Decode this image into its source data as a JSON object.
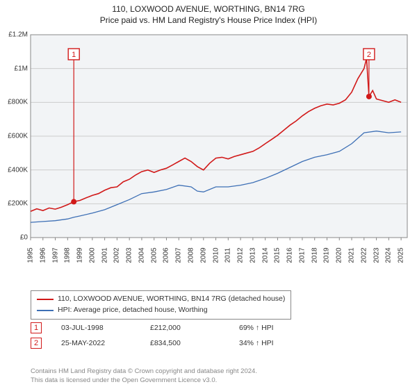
{
  "title": "110, LOXWOOD AVENUE, WORTHING, BN14 7RG",
  "subtitle": "Price paid vs. HM Land Registry's House Price Index (HPI)",
  "chart": {
    "type": "line",
    "xlim": [
      1995,
      2025.5
    ],
    "ylim": [
      0,
      1200000
    ],
    "ytick_step": 200000,
    "yticks": [
      0,
      200000,
      400000,
      600000,
      800000,
      1000000,
      1200000
    ],
    "ytick_labels": [
      "£0",
      "£200K",
      "£400K",
      "£600K",
      "£800K",
      "£1M",
      "£1.2M"
    ],
    "xticks": [
      1995,
      1996,
      1997,
      1998,
      1999,
      2000,
      2001,
      2002,
      2003,
      2004,
      2005,
      2006,
      2007,
      2008,
      2009,
      2010,
      2011,
      2012,
      2013,
      2014,
      2015,
      2016,
      2017,
      2018,
      2019,
      2020,
      2021,
      2022,
      2023,
      2024,
      2025
    ],
    "background_color": "#f2f4f6",
    "grid_color": "#cccccc",
    "series": [
      {
        "name": "110, LOXWOOD AVENUE, WORTHING, BN14 7RG (detached house)",
        "color": "#d11919",
        "line_width": 1.6,
        "data": [
          [
            1995.0,
            155000
          ],
          [
            1995.5,
            170000
          ],
          [
            1996.0,
            160000
          ],
          [
            1996.5,
            175000
          ],
          [
            1997.0,
            168000
          ],
          [
            1997.5,
            180000
          ],
          [
            1998.0,
            195000
          ],
          [
            1998.5,
            212000
          ],
          [
            1999.0,
            220000
          ],
          [
            1999.5,
            235000
          ],
          [
            2000.0,
            250000
          ],
          [
            2000.5,
            260000
          ],
          [
            2001.0,
            280000
          ],
          [
            2001.5,
            295000
          ],
          [
            2002.0,
            300000
          ],
          [
            2002.5,
            330000
          ],
          [
            2003.0,
            345000
          ],
          [
            2003.5,
            370000
          ],
          [
            2004.0,
            390000
          ],
          [
            2004.5,
            400000
          ],
          [
            2005.0,
            385000
          ],
          [
            2005.5,
            400000
          ],
          [
            2006.0,
            410000
          ],
          [
            2006.5,
            430000
          ],
          [
            2007.0,
            450000
          ],
          [
            2007.5,
            470000
          ],
          [
            2008.0,
            450000
          ],
          [
            2008.5,
            420000
          ],
          [
            2009.0,
            400000
          ],
          [
            2009.5,
            440000
          ],
          [
            2010.0,
            470000
          ],
          [
            2010.5,
            475000
          ],
          [
            2011.0,
            465000
          ],
          [
            2011.5,
            480000
          ],
          [
            2012.0,
            490000
          ],
          [
            2012.5,
            500000
          ],
          [
            2013.0,
            510000
          ],
          [
            2013.5,
            530000
          ],
          [
            2014.0,
            555000
          ],
          [
            2014.5,
            580000
          ],
          [
            2015.0,
            605000
          ],
          [
            2015.5,
            635000
          ],
          [
            2016.0,
            665000
          ],
          [
            2016.5,
            690000
          ],
          [
            2017.0,
            720000
          ],
          [
            2017.5,
            745000
          ],
          [
            2018.0,
            765000
          ],
          [
            2018.5,
            780000
          ],
          [
            2019.0,
            790000
          ],
          [
            2019.5,
            785000
          ],
          [
            2020.0,
            795000
          ],
          [
            2020.5,
            815000
          ],
          [
            2021.0,
            860000
          ],
          [
            2021.5,
            940000
          ],
          [
            2022.0,
            1000000
          ],
          [
            2022.2,
            1060000
          ],
          [
            2022.4,
            834500
          ],
          [
            2022.7,
            870000
          ],
          [
            2023.0,
            820000
          ],
          [
            2023.5,
            810000
          ],
          [
            2024.0,
            800000
          ],
          [
            2024.5,
            815000
          ],
          [
            2025.0,
            800000
          ]
        ]
      },
      {
        "name": "HPI: Average price, detached house, Worthing",
        "color": "#3d6fb5",
        "line_width": 1.3,
        "data": [
          [
            1995.0,
            90000
          ],
          [
            1996.0,
            95000
          ],
          [
            1997.0,
            100000
          ],
          [
            1998.0,
            110000
          ],
          [
            1998.5,
            120000
          ],
          [
            1999.0,
            128000
          ],
          [
            2000.0,
            145000
          ],
          [
            2001.0,
            165000
          ],
          [
            2002.0,
            195000
          ],
          [
            2003.0,
            225000
          ],
          [
            2004.0,
            260000
          ],
          [
            2005.0,
            270000
          ],
          [
            2006.0,
            285000
          ],
          [
            2007.0,
            310000
          ],
          [
            2008.0,
            300000
          ],
          [
            2008.5,
            275000
          ],
          [
            2009.0,
            270000
          ],
          [
            2010.0,
            300000
          ],
          [
            2011.0,
            300000
          ],
          [
            2012.0,
            310000
          ],
          [
            2013.0,
            325000
          ],
          [
            2014.0,
            350000
          ],
          [
            2015.0,
            380000
          ],
          [
            2016.0,
            415000
          ],
          [
            2017.0,
            450000
          ],
          [
            2018.0,
            475000
          ],
          [
            2019.0,
            490000
          ],
          [
            2020.0,
            510000
          ],
          [
            2021.0,
            555000
          ],
          [
            2022.0,
            620000
          ],
          [
            2023.0,
            630000
          ],
          [
            2024.0,
            620000
          ],
          [
            2025.0,
            625000
          ]
        ]
      }
    ],
    "markers": [
      {
        "n": 1,
        "label": "1",
        "x": 1998.5,
        "y": 212000
      },
      {
        "n": 2,
        "label": "2",
        "x": 2022.4,
        "y": 834500
      }
    ]
  },
  "legend": {
    "items": [
      {
        "label": "110, LOXWOOD AVENUE, WORTHING, BN14 7RG (detached house)",
        "color": "#d11919"
      },
      {
        "label": "HPI: Average price, detached house, Worthing",
        "color": "#3d6fb5"
      }
    ]
  },
  "sales": [
    {
      "marker": "1",
      "date": "03-JUL-1998",
      "price": "£212,000",
      "hpi": "69% ↑ HPI"
    },
    {
      "marker": "2",
      "date": "25-MAY-2022",
      "price": "£834,500",
      "hpi": "34% ↑ HPI"
    }
  ],
  "footer": {
    "line1": "Contains HM Land Registry data © Crown copyright and database right 2024.",
    "line2": "This data is licensed under the Open Government Licence v3.0."
  }
}
